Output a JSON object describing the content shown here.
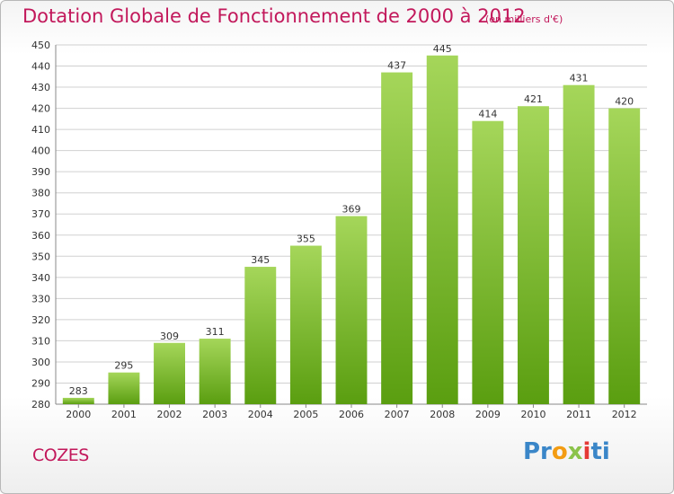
{
  "title": "Dotation Globale de Fonctionnement de 2000 à 2012",
  "subtitle": "(en milliers d'€)",
  "commune": "COZES",
  "logo": {
    "letters": [
      "Pr",
      "o",
      "x",
      "i",
      "ti"
    ]
  },
  "colors": {
    "title": "#c2185b",
    "bar_top": "#a5d65a",
    "bar_bottom": "#5a9e10",
    "grid": "#d0d0d0",
    "background": "#ffffff"
  },
  "chart_data": {
    "type": "bar",
    "categories": [
      "2000",
      "2001",
      "2002",
      "2003",
      "2004",
      "2005",
      "2006",
      "2007",
      "2008",
      "2009",
      "2010",
      "2011",
      "2012"
    ],
    "values": [
      283,
      295,
      309,
      311,
      345,
      355,
      369,
      437,
      445,
      414,
      421,
      431,
      420
    ],
    "ylim": [
      280,
      450
    ],
    "yticks": [
      280,
      290,
      300,
      310,
      320,
      330,
      340,
      350,
      360,
      370,
      380,
      390,
      400,
      410,
      420,
      430,
      440,
      450
    ],
    "grid": true,
    "xlabel": "",
    "ylabel": ""
  }
}
